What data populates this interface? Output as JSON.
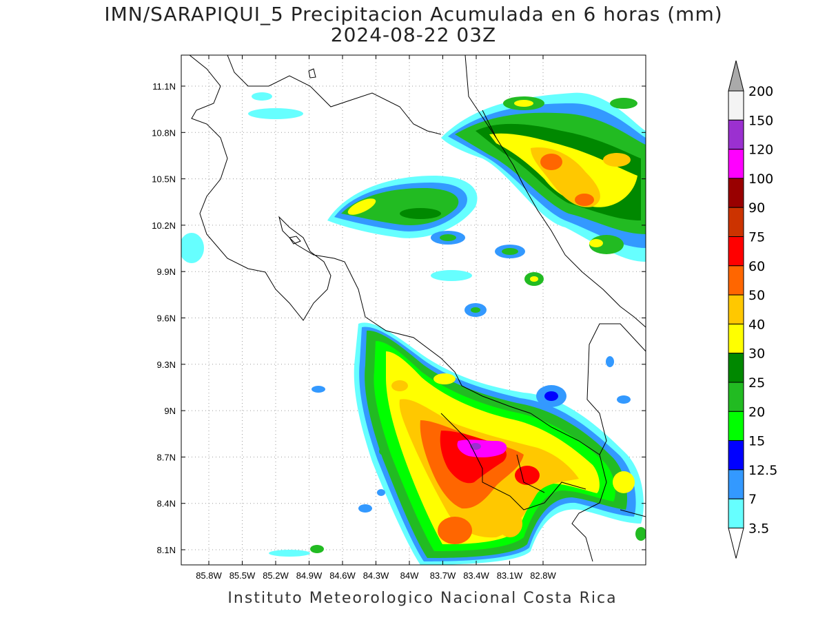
{
  "header": {
    "title": "IMN/SARAPIQUI_5 Precipitacion Acumulada en 6 horas (mm)",
    "date": "2024-08-22 03Z"
  },
  "footer": {
    "credit": "Instituto Meteorologico Nacional Costa Rica"
  },
  "axes": {
    "lon_ticks": [
      "85.8W",
      "85.5W",
      "85.2W",
      "84.9W",
      "84.6W",
      "84.3W",
      "84W",
      "83.7W",
      "83.4W",
      "83.1W",
      "82.8W"
    ],
    "lat_ticks": [
      "11.1N",
      "10.8N",
      "10.5N",
      "10.2N",
      "9.9N",
      "9.6N",
      "9.3N",
      "9N",
      "8.7N",
      "8.4N",
      "8.1N"
    ],
    "grid": true
  },
  "colorbar": {
    "levels": [
      {
        "label": "200",
        "color": "#aaaaaa"
      },
      {
        "label": "150",
        "color": "#f4f4f4"
      },
      {
        "label": "120",
        "color": "#9b30d0"
      },
      {
        "label": "100",
        "color": "#ff00ff"
      },
      {
        "label": "90",
        "color": "#990000"
      },
      {
        "label": "75",
        "color": "#cc3300"
      },
      {
        "label": "60",
        "color": "#ff0000"
      },
      {
        "label": "50",
        "color": "#ff6600"
      },
      {
        "label": "40",
        "color": "#ffc800"
      },
      {
        "label": "30",
        "color": "#ffff00"
      },
      {
        "label": "25",
        "color": "#008800"
      },
      {
        "label": "20",
        "color": "#22bb22"
      },
      {
        "label": "15",
        "color": "#00ff00"
      },
      {
        "label": "12.5",
        "color": "#0000ff"
      },
      {
        "label": "7",
        "color": "#3399ff"
      },
      {
        "label": "3.5",
        "color": "#66ffff"
      }
    ],
    "bottom_color": "#ffffff"
  }
}
